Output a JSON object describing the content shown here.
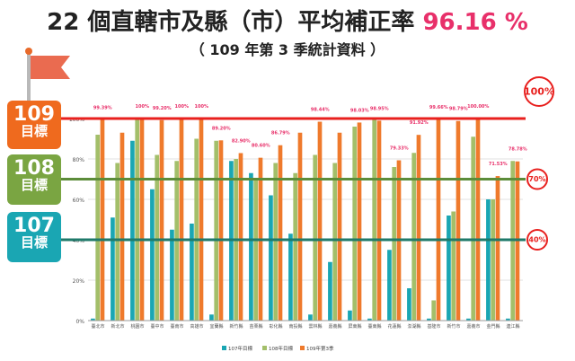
{
  "header": {
    "title_prefix": "22 個直轄市及縣（市）平均補正率",
    "title_rate": "96.16 %",
    "subtitle": "（ 109 年第 3 季統計資料 ）"
  },
  "targets": [
    {
      "year": "109",
      "label": "目標",
      "line_label": "100%",
      "color": "#ef6a1e"
    },
    {
      "year": "108",
      "label": "目標",
      "line_label": "70%",
      "color": "#7aa542"
    },
    {
      "year": "107",
      "label": "目標",
      "line_label": "40%",
      "color": "#1aa6b3"
    }
  ],
  "colors": {
    "series_107": "#1aa6b3",
    "series_108": "#a3bf6a",
    "series_109": "#ef7a2c",
    "target_line_100": "#e8201e",
    "target_line_70": "#5c8c3a",
    "target_line_40": "#1f7a6a",
    "data_label": "#e8306a"
  },
  "chart_data": {
    "type": "bar",
    "categories": [
      "臺北市",
      "新北市",
      "桃園市",
      "臺中市",
      "臺南市",
      "高雄市",
      "宜蘭縣",
      "新竹縣",
      "苗栗縣",
      "彰化縣",
      "南投縣",
      "雲林縣",
      "嘉義縣",
      "屏東縣",
      "臺東縣",
      "花蓮縣",
      "澎湖縣",
      "基隆市",
      "新竹市",
      "嘉義市",
      "金門縣",
      "連江縣"
    ],
    "series": [
      {
        "name": "107年目標",
        "values": [
          1,
          51,
          89,
          65,
          45,
          48,
          3,
          79,
          73,
          62,
          43,
          3,
          29,
          5,
          1,
          35,
          16,
          1,
          52,
          1,
          60,
          1
        ]
      },
      {
        "name": "108年目標",
        "values": [
          92,
          78,
          100,
          82,
          79,
          90,
          89,
          80,
          70,
          78,
          73,
          82,
          78,
          96,
          100,
          76,
          83,
          10,
          54,
          91,
          60,
          79
        ]
      },
      {
        "name": "109年第3季",
        "values": [
          99.39,
          93,
          100,
          99.2,
          100,
          100,
          89.2,
          82.9,
          80.6,
          86.79,
          93,
          98.44,
          93,
          98.03,
          98.95,
          79.33,
          91.92,
          99.66,
          98.79,
          100,
          71.53,
          78.78
        ]
      }
    ],
    "data_labels": [
      "99.39%",
      "",
      "100%",
      "99.20%",
      "100%",
      "100%",
      "89.20%",
      "82.90%",
      "80.60%",
      "86.79%",
      "",
      "98.44%",
      "",
      "98.03%",
      "98.95%",
      "79.33%",
      "91.92%",
      "99.66%",
      "98.79%",
      "100.00%",
      "71.53%",
      "78.78%"
    ],
    "y_ticks": [
      "0%",
      "20%",
      "40%",
      "60%",
      "80%",
      "100%"
    ],
    "ylim": [
      0,
      100
    ],
    "target_lines": [
      100,
      70,
      40
    ],
    "grid": true,
    "legend_position": "bottom"
  }
}
